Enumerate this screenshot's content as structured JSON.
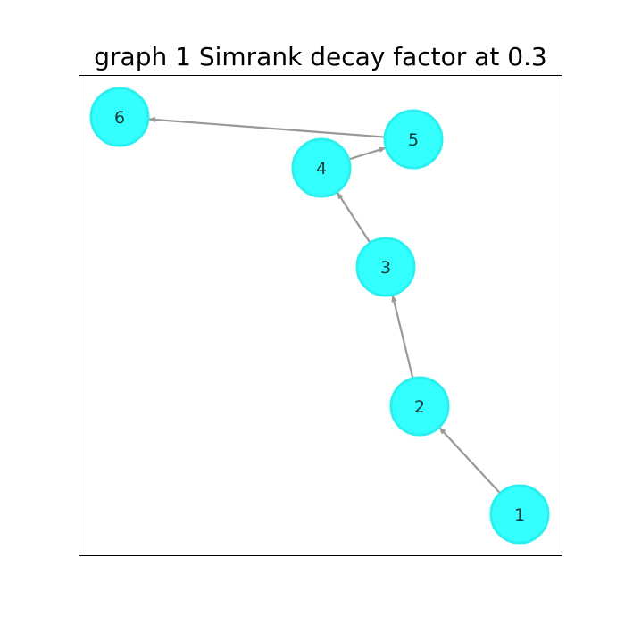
{
  "title": "graph 1 Simrank decay factor at 0.3",
  "colors": {
    "node_fill": "#33ffff",
    "node_stroke": "#2bf0f0",
    "edge": "#999999",
    "frame": "#000000"
  },
  "graph": {
    "nodes": [
      {
        "id": "1",
        "label": "1"
      },
      {
        "id": "2",
        "label": "2"
      },
      {
        "id": "3",
        "label": "3"
      },
      {
        "id": "4",
        "label": "4"
      },
      {
        "id": "5",
        "label": "5"
      },
      {
        "id": "6",
        "label": "6"
      }
    ],
    "edges": [
      {
        "from": "1",
        "to": "2"
      },
      {
        "from": "2",
        "to": "3"
      },
      {
        "from": "3",
        "to": "4"
      },
      {
        "from": "4",
        "to": "5"
      },
      {
        "from": "5",
        "to": "6"
      }
    ],
    "directed": true
  }
}
